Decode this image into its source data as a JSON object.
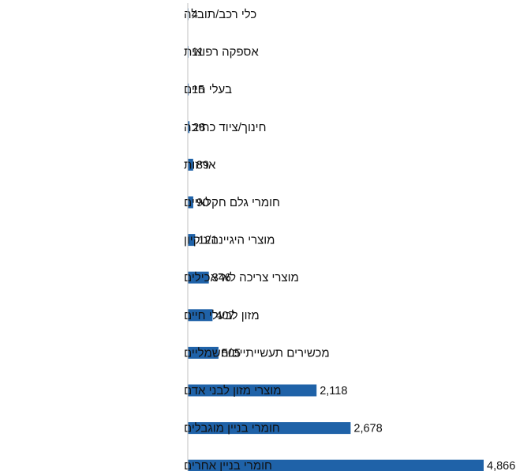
{
  "chart_data": {
    "type": "bar",
    "orientation": "horizontal",
    "title": "",
    "xlabel": "",
    "ylabel": "",
    "categories": [
      "כלי רכב/תובלה",
      "אספקה רפואית",
      "בעלי חיים",
      "חינוך/ציוד כתיבה",
      "אריזות",
      "חומרי גלם חקלאיים",
      "מוצרי היגיינה/ניקיון",
      "מוצרי צריכה לא־אכילים",
      "מזון לבעלי חיים",
      "מכשירים תעשייתיים/חשמליים",
      "מוצרי מזון לבני אדם",
      "חומרי בניין מוגבלים",
      "חומרי בניין אחרים"
    ],
    "values": [
      4,
      11,
      15,
      28,
      89,
      90,
      121,
      346,
      407,
      505,
      2118,
      2678,
      4866
    ],
    "value_labels": [
      "4",
      "11",
      "15",
      "28",
      "89",
      "90",
      "121",
      "346",
      "407",
      "505",
      "2,118",
      "2,678",
      "4,866"
    ],
    "xlim": [
      0,
      4866
    ],
    "grid": false,
    "legend": "none",
    "bar_color": "#1f62a8",
    "axis_color": "#c0c0c0"
  }
}
